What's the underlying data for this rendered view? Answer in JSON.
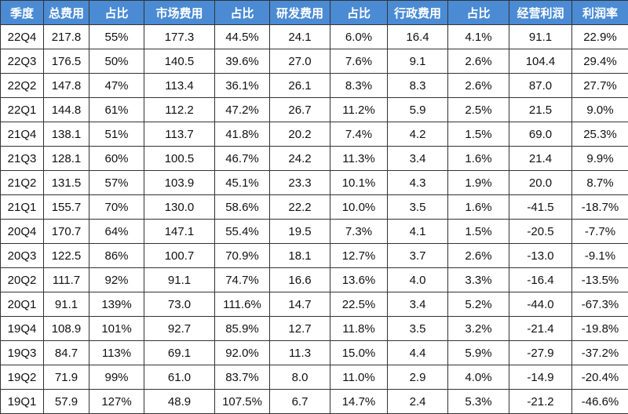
{
  "table": {
    "header": [
      "季度",
      "总费用",
      "占比",
      "市场费用",
      "占比",
      "研发费用",
      "占比",
      "行政费用",
      "占比",
      "经营利润",
      "利润率"
    ],
    "rows": [
      [
        "22Q4",
        "217.8",
        "55%",
        "177.3",
        "44.5%",
        "24.1",
        "6.0%",
        "16.4",
        "4.1%",
        "91.1",
        "22.9%"
      ],
      [
        "22Q3",
        "176.5",
        "50%",
        "140.5",
        "39.6%",
        "27.0",
        "7.6%",
        "9.1",
        "2.6%",
        "104.4",
        "29.4%"
      ],
      [
        "22Q2",
        "147.8",
        "47%",
        "113.4",
        "36.1%",
        "26.1",
        "8.3%",
        "8.3",
        "2.6%",
        "87.0",
        "27.7%"
      ],
      [
        "22Q1",
        "144.8",
        "61%",
        "112.2",
        "47.2%",
        "26.7",
        "11.2%",
        "5.9",
        "2.5%",
        "21.5",
        "9.0%"
      ],
      [
        "21Q4",
        "138.1",
        "51%",
        "113.7",
        "41.8%",
        "20.2",
        "7.4%",
        "4.2",
        "1.5%",
        "69.0",
        "25.3%"
      ],
      [
        "21Q3",
        "128.1",
        "60%",
        "100.5",
        "46.7%",
        "24.2",
        "11.3%",
        "3.4",
        "1.6%",
        "21.4",
        "9.9%"
      ],
      [
        "21Q2",
        "131.5",
        "57%",
        "103.9",
        "45.1%",
        "23.3",
        "10.1%",
        "4.3",
        "1.9%",
        "20.0",
        "8.7%"
      ],
      [
        "21Q1",
        "155.7",
        "70%",
        "130.0",
        "58.6%",
        "22.2",
        "10.0%",
        "3.5",
        "1.6%",
        "-41.5",
        "-18.7%"
      ],
      [
        "20Q4",
        "170.7",
        "64%",
        "147.1",
        "55.4%",
        "19.5",
        "7.3%",
        "4.1",
        "1.5%",
        "-20.5",
        "-7.7%"
      ],
      [
        "20Q3",
        "122.5",
        "86%",
        "100.7",
        "70.9%",
        "18.1",
        "12.7%",
        "3.7",
        "2.6%",
        "-13.0",
        "-9.1%"
      ],
      [
        "20Q2",
        "111.7",
        "92%",
        "91.1",
        "74.7%",
        "16.6",
        "13.6%",
        "4.0",
        "3.3%",
        "-16.4",
        "-13.5%"
      ],
      [
        "20Q1",
        "91.1",
        "139%",
        "73.0",
        "111.6%",
        "14.7",
        "22.5%",
        "3.4",
        "5.2%",
        "-44.0",
        "-67.3%"
      ],
      [
        "19Q4",
        "108.9",
        "101%",
        "92.7",
        "85.9%",
        "12.7",
        "11.8%",
        "3.5",
        "3.2%",
        "-21.4",
        "-19.8%"
      ],
      [
        "19Q3",
        "84.7",
        "113%",
        "69.1",
        "92.0%",
        "11.3",
        "15.0%",
        "4.4",
        "5.9%",
        "-27.9",
        "-37.2%"
      ],
      [
        "19Q2",
        "71.9",
        "99%",
        "61.0",
        "83.7%",
        "8.0",
        "11.0%",
        "2.9",
        "4.0%",
        "-14.9",
        "-20.4%"
      ],
      [
        "19Q1",
        "57.9",
        "127%",
        "48.9",
        "107.5%",
        "6.7",
        "14.7%",
        "2.4",
        "5.3%",
        "-21.2",
        "-46.6%"
      ]
    ]
  }
}
